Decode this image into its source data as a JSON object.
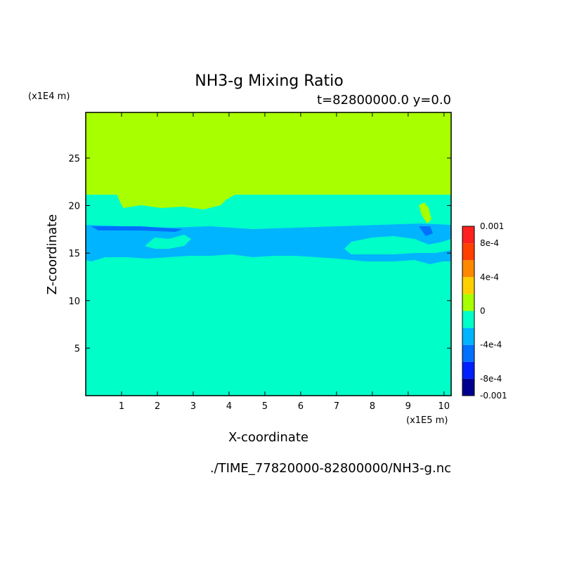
{
  "chart_data": {
    "type": "heatmap",
    "title": "NH3-g Mixing Ratio",
    "subtitle": "t=82800000.0 y=0.0",
    "xlabel": "X-coordinate",
    "ylabel": "Z-coordinate",
    "x_unit": "(x1E5 m)",
    "y_unit": "(x1E4 m)",
    "xlim": [
      0,
      10.2
    ],
    "ylim": [
      0,
      29.8
    ],
    "x_ticks": [
      1,
      2,
      3,
      4,
      5,
      6,
      7,
      8,
      9,
      10
    ],
    "y_ticks": [
      5,
      10,
      15,
      20,
      25
    ],
    "colorbar": {
      "range": [
        -0.001,
        0.001
      ],
      "labels": [
        "0.001",
        "8e-4",
        "4e-4",
        "0",
        "-4e-4",
        "-8e-4",
        "-0.001"
      ],
      "label_values": [
        0.001,
        0.0008,
        0.0004,
        0,
        -0.0004,
        -0.0008,
        -0.001
      ],
      "levels": [
        {
          "from": -0.001,
          "to": -0.0008,
          "color": "#00008f"
        },
        {
          "from": -0.0008,
          "to": -0.0006,
          "color": "#0020ff"
        },
        {
          "from": -0.0006,
          "to": -0.0004,
          "color": "#0070ff"
        },
        {
          "from": -0.0004,
          "to": -0.0002,
          "color": "#00b4ff"
        },
        {
          "from": -0.0002,
          "to": 0.0,
          "color": "#00ffc8"
        },
        {
          "from": 0.0,
          "to": 0.0002,
          "color": "#a8ff00"
        },
        {
          "from": 0.0002,
          "to": 0.0004,
          "color": "#ffd000"
        },
        {
          "from": 0.0004,
          "to": 0.0006,
          "color": "#ff8800"
        },
        {
          "from": 0.0006,
          "to": 0.0008,
          "color": "#ff4000"
        },
        {
          "from": 0.0008,
          "to": 0.001,
          "color": "#ff2020"
        }
      ]
    },
    "regions": [
      {
        "name": "upper positive layer",
        "x": [
          0,
          10.2
        ],
        "z": [
          21.3,
          29.8
        ],
        "level": "0 to 2e-4"
      },
      {
        "name": "middle band",
        "x": [
          0,
          10.2
        ],
        "z": [
          14.5,
          18.0
        ],
        "level": "-4e-4 to -2e-4"
      },
      {
        "name": "background",
        "x": [
          0,
          10.2
        ],
        "z": [
          0,
          21.3
        ],
        "level": "-2e-4 to 0"
      }
    ]
  },
  "footer_path": "./TIME_77820000-82800000/NH3-g.nc"
}
